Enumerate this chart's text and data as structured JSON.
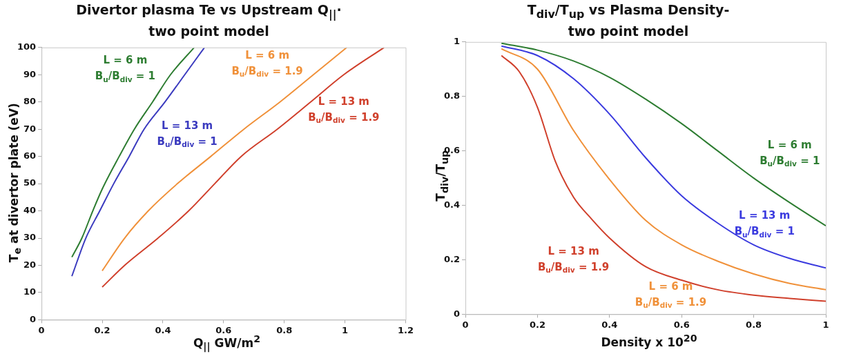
{
  "chart_data": [
    {
      "type": "line",
      "title": "Divertor plasma Te vs Upstream Q$_{||}$·\ntwo point model",
      "xlabel": "Q$_{||}$ GW/m$^{2}$",
      "ylabel": "T$_{e}$ at divertor plate (eV)",
      "xlim": [
        0,
        1.2
      ],
      "xticks": [
        0,
        0.2,
        0.4,
        0.6,
        0.8,
        1,
        1.2
      ],
      "ylim": [
        0,
        100
      ],
      "yticks": [
        0,
        10,
        20,
        30,
        40,
        50,
        60,
        70,
        80,
        90,
        100
      ],
      "grid": false,
      "legend": false,
      "marker": "none",
      "line_style": "solid",
      "series": [
        {
          "name": "L = 6 m\nB$_{u}$/B$_{div}$ = 1",
          "color": "#2e7d32",
          "x": [
            0.1,
            0.133,
            0.169,
            0.2,
            0.256,
            0.306,
            0.366,
            0.425,
            0.503
          ],
          "values": [
            23,
            30,
            40,
            48,
            60,
            70,
            80,
            90,
            100
          ]
        },
        {
          "name": "L = 13 m\nB$_{u}$/B$_{div}$ = 1",
          "color": "#3b3bbf",
          "x": [
            0.1,
            0.146,
            0.192,
            0.238,
            0.289,
            0.338,
            0.407,
            0.472,
            0.537
          ],
          "values": [
            16,
            30,
            40,
            50,
            60,
            70,
            80,
            90,
            100
          ]
        },
        {
          "name": "L = 6 m\nB$_{u}$/B$_{div}$ = 1.9",
          "color": "#f0913a",
          "x": [
            0.2,
            0.274,
            0.352,
            0.448,
            0.558,
            0.667,
            0.786,
            0.896,
            1.006
          ],
          "values": [
            18,
            30,
            40,
            50,
            60,
            70,
            80,
            90,
            100
          ]
        },
        {
          "name": "L = 13 m\nB$_{u}$/B$_{div}$ = 1.9",
          "color": "#d0402c",
          "x": [
            0.2,
            0.274,
            0.384,
            0.485,
            0.571,
            0.658,
            0.777,
            0.887,
            0.996,
            1.129
          ],
          "values": [
            12,
            20,
            30,
            40,
            50,
            60,
            70,
            80,
            90,
            100
          ]
        }
      ]
    },
    {
      "type": "line",
      "title": "T$_{div}$/T$_{up}$ vs Plasma Density-\ntwo point model",
      "xlabel": "Density x 10$^{20}$",
      "ylabel": "T$_{div}$/T$_{up}$",
      "xlim": [
        0,
        1
      ],
      "xticks": [
        0,
        0.2,
        0.4,
        0.6,
        0.8,
        1
      ],
      "ylim": [
        0,
        1
      ],
      "yticks": [
        0,
        0.2,
        0.4,
        0.6,
        0.8,
        1
      ],
      "grid": false,
      "legend": false,
      "marker": "none",
      "line_style": "solid",
      "series": [
        {
          "name": "L = 6 m\nB$_{u}$/B$_{div}$ = 1",
          "color": "#2e7d32",
          "x": [
            0.1,
            0.2,
            0.3,
            0.4,
            0.5,
            0.6,
            0.7,
            0.8,
            0.9,
            1
          ],
          "values": [
            0.995,
            0.97,
            0.93,
            0.87,
            0.79,
            0.7,
            0.6,
            0.5,
            0.41,
            0.325
          ]
        },
        {
          "name": "L = 13 m\nB$_{u}$/B$_{div}$ = 1",
          "color": "#3b3bdf",
          "x": [
            0.1,
            0.2,
            0.3,
            0.4,
            0.5,
            0.6,
            0.7,
            0.8,
            0.9,
            1
          ],
          "values": [
            0.985,
            0.95,
            0.865,
            0.735,
            0.575,
            0.435,
            0.335,
            0.255,
            0.205,
            0.17
          ]
        },
        {
          "name": "L = 6 m\nB$_{u}$/B$_{div}$ = 1.9",
          "color": "#f0913a",
          "x": [
            0.1,
            0.2,
            0.3,
            0.4,
            0.5,
            0.6,
            0.7,
            0.8,
            0.9,
            1
          ],
          "values": [
            0.975,
            0.9,
            0.675,
            0.495,
            0.345,
            0.255,
            0.195,
            0.148,
            0.113,
            0.09
          ]
        },
        {
          "name": "L = 13 m\nB$_{u}$/B$_{div}$ = 1.9",
          "color": "#d0402c",
          "x": [
            0.1,
            0.15,
            0.2,
            0.25,
            0.3,
            0.35,
            0.4,
            0.5,
            0.6,
            0.7,
            0.8,
            0.9,
            1
          ],
          "values": [
            0.95,
            0.89,
            0.76,
            0.56,
            0.43,
            0.35,
            0.28,
            0.175,
            0.125,
            0.09,
            0.07,
            0.058,
            0.048
          ]
        }
      ]
    }
  ]
}
